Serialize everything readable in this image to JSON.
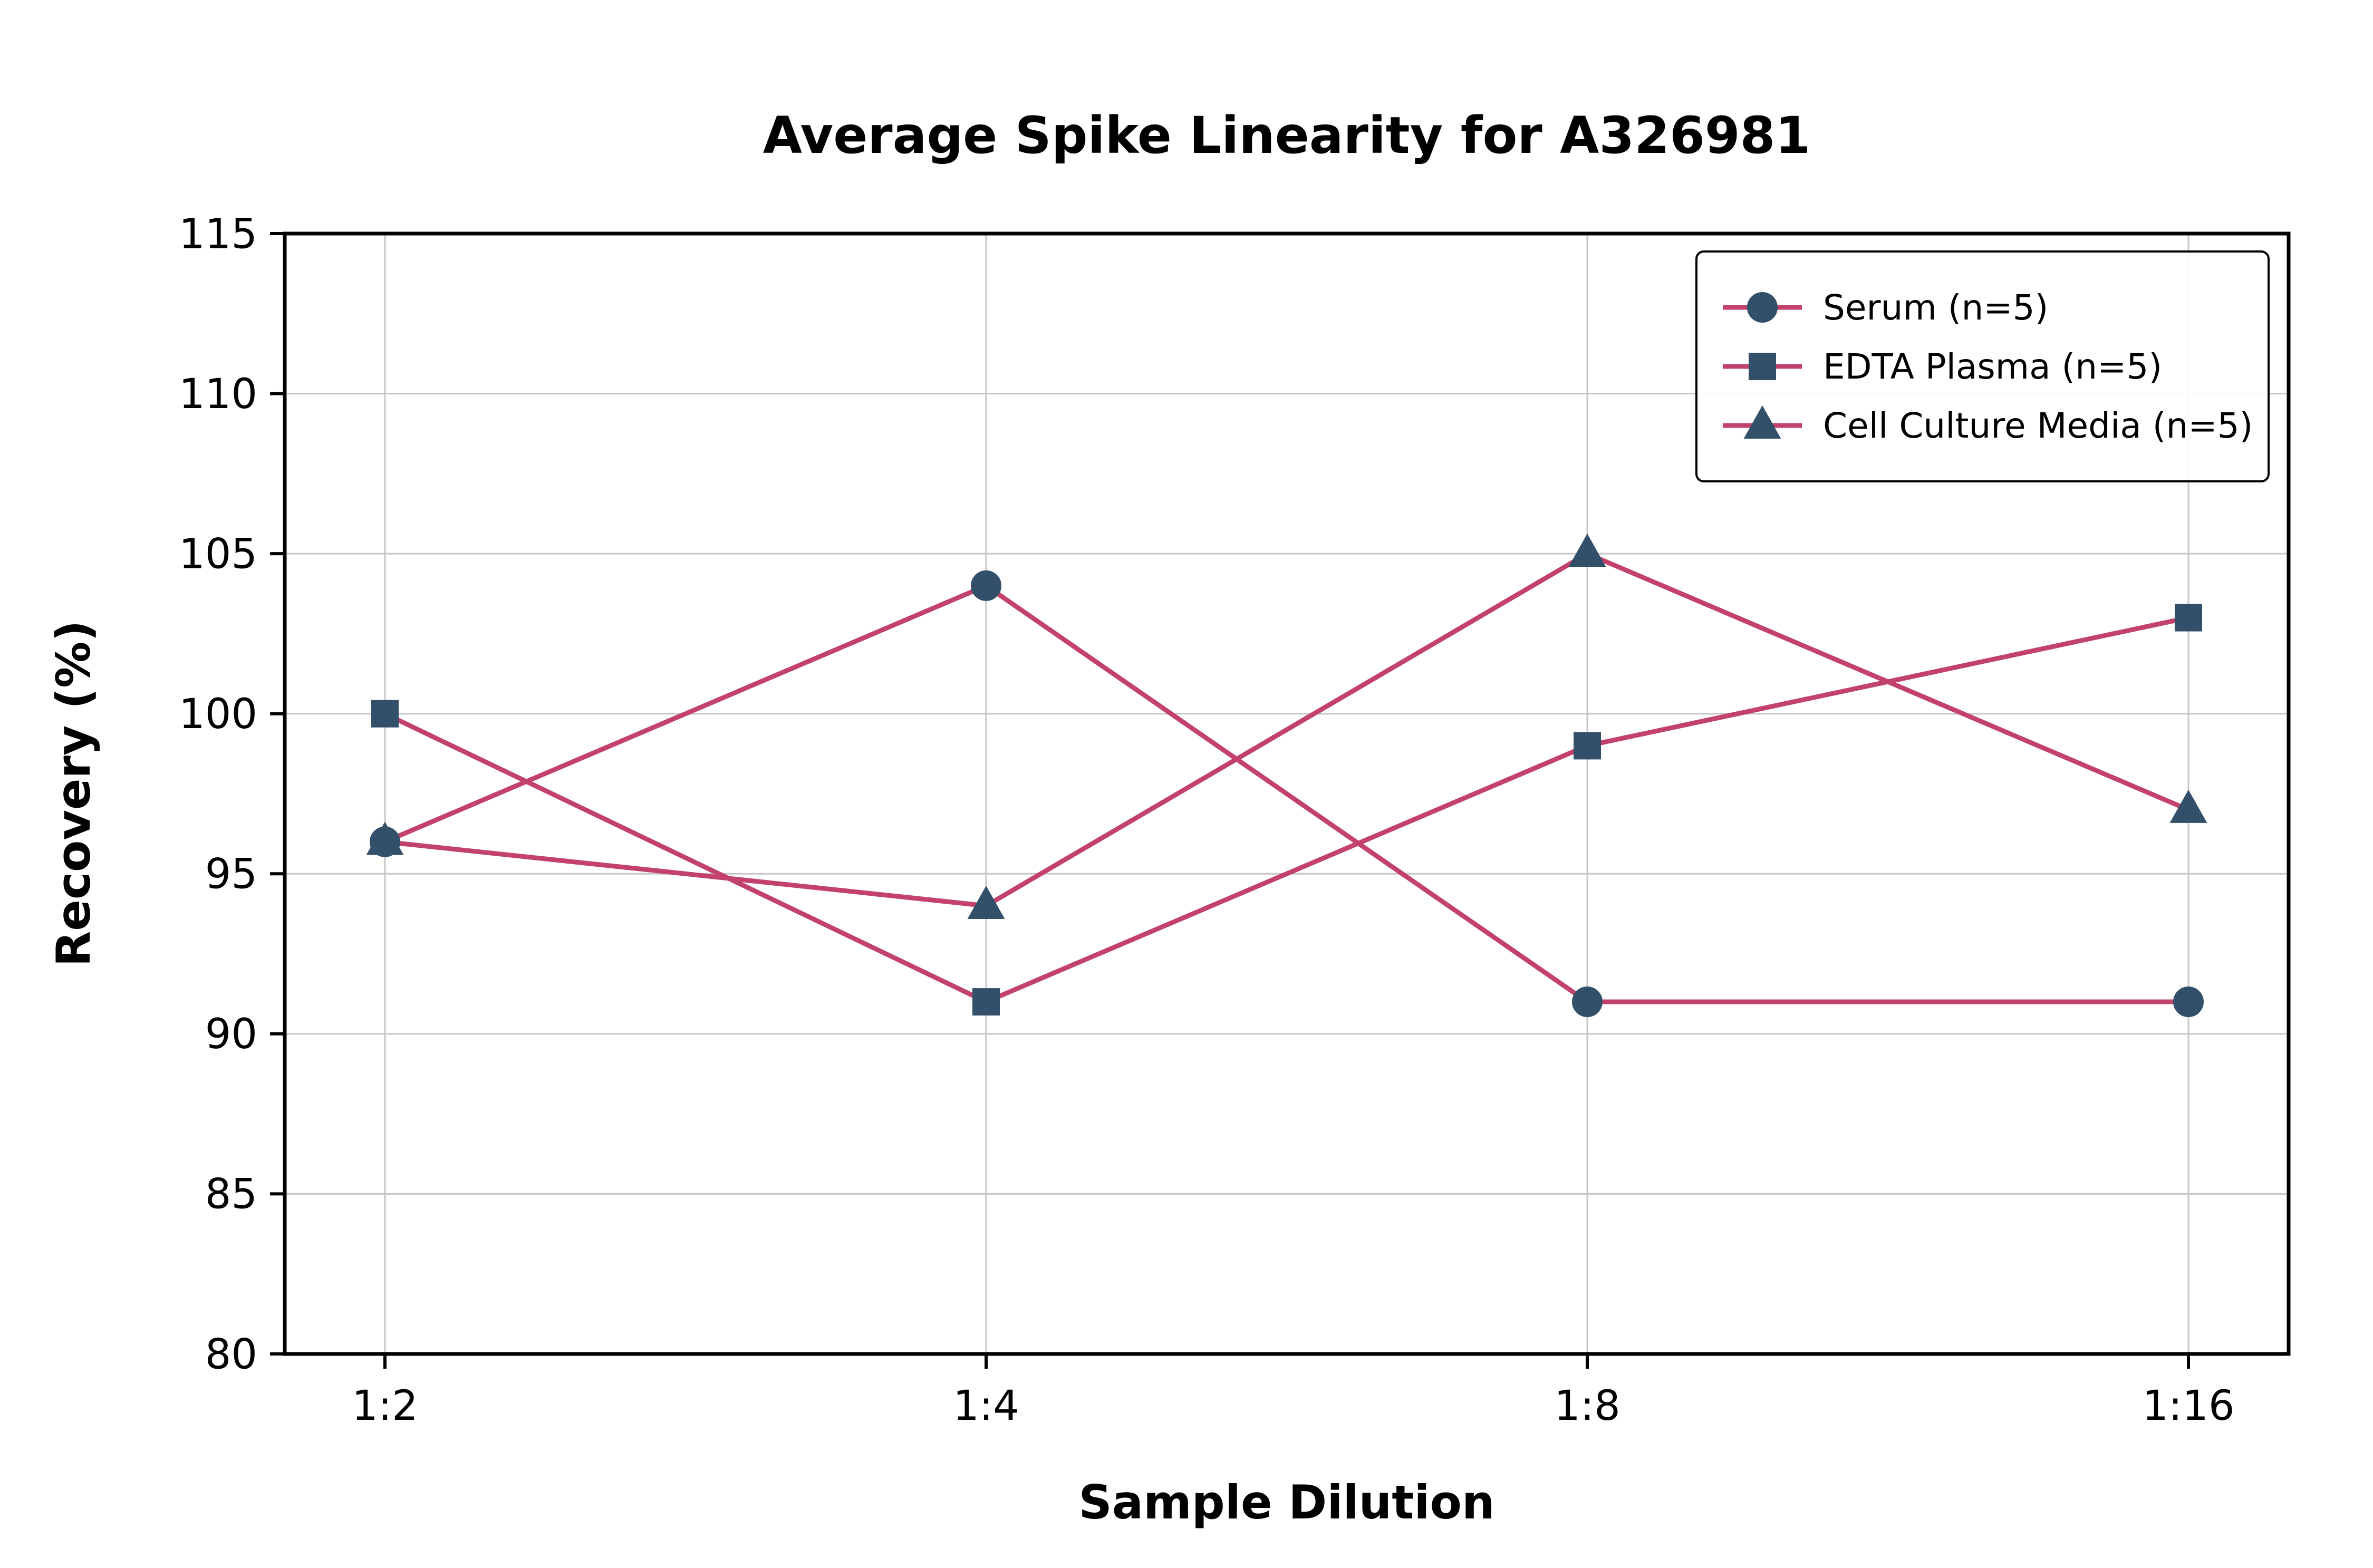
{
  "chart_data": {
    "type": "line",
    "title": "Average Spike Linearity for A326981",
    "xlabel": "Sample Dilution",
    "ylabel": "Recovery (%)",
    "categories": [
      "1:2",
      "1:4",
      "1:8",
      "1:16"
    ],
    "ylim": [
      80,
      115
    ],
    "ytick_step": 5,
    "ytick_labels": [
      "80",
      "85",
      "90",
      "95",
      "100",
      "105",
      "110",
      "115"
    ],
    "grid": true,
    "legend_position": "upper right",
    "colors": {
      "line": "#c2426b",
      "marker": "#33506b",
      "grid": "#c6c6c6",
      "axis": "#000000",
      "legend_border": "#000000",
      "legend_bg": "#ffffff"
    },
    "series": [
      {
        "name": "Serum (n=5)",
        "marker": "circle",
        "values": [
          96,
          104,
          91,
          91
        ]
      },
      {
        "name": "EDTA Plasma (n=5)",
        "marker": "square",
        "values": [
          100,
          91,
          99,
          103
        ]
      },
      {
        "name": "Cell Culture Media (n=5)",
        "marker": "triangle",
        "values": [
          96,
          94,
          105,
          97
        ]
      }
    ]
  }
}
